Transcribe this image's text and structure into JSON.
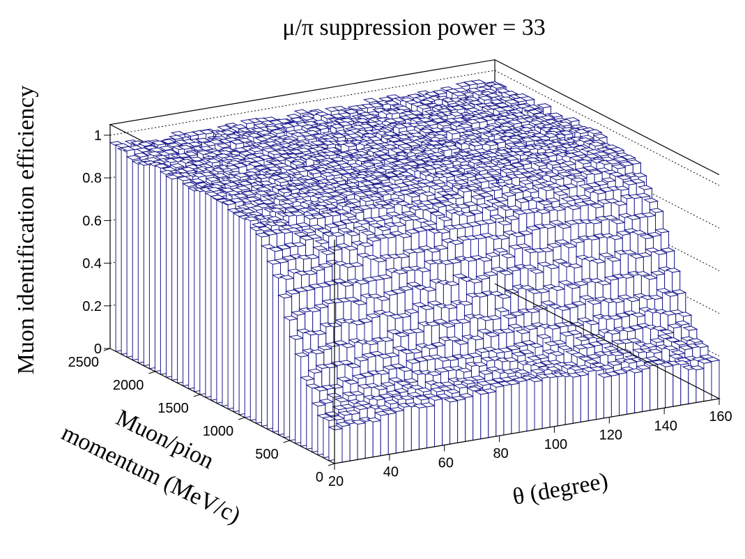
{
  "chart_data": {
    "type": "bar3d",
    "title": "μ/π suppression power = 33",
    "xlabel": "θ (degree)",
    "ylabel_line1": "Muon/pion",
    "ylabel_line2": "momentum (MeV/c)",
    "zlabel": "Muon identification efficiency",
    "xlim": [
      20,
      160
    ],
    "ylim": [
      0,
      2500
    ],
    "zlim": [
      0,
      1.05
    ],
    "x_ticks": [
      20,
      40,
      60,
      80,
      100,
      120,
      140,
      160
    ],
    "y_ticks": [
      0,
      500,
      1000,
      1500,
      2000,
      2500
    ],
    "z_ticks": [
      0,
      0.2,
      0.4,
      0.6,
      0.8,
      1
    ],
    "z_tick_labels": [
      "0",
      "0.2",
      "0.4",
      "0.6",
      "0.8",
      "1"
    ],
    "bar_color": "#1a1a8c",
    "theta_bins": 50,
    "momentum_bins": 40,
    "model": {
      "plateau_efficiency": 0.95,
      "turn_on_momentum_center_mev": 500,
      "turn_on_momentum_width_mev": 150,
      "low_momentum_efficiency_at_90deg": 0.19,
      "edge_efficiency_at_20deg": 0.8
    }
  }
}
